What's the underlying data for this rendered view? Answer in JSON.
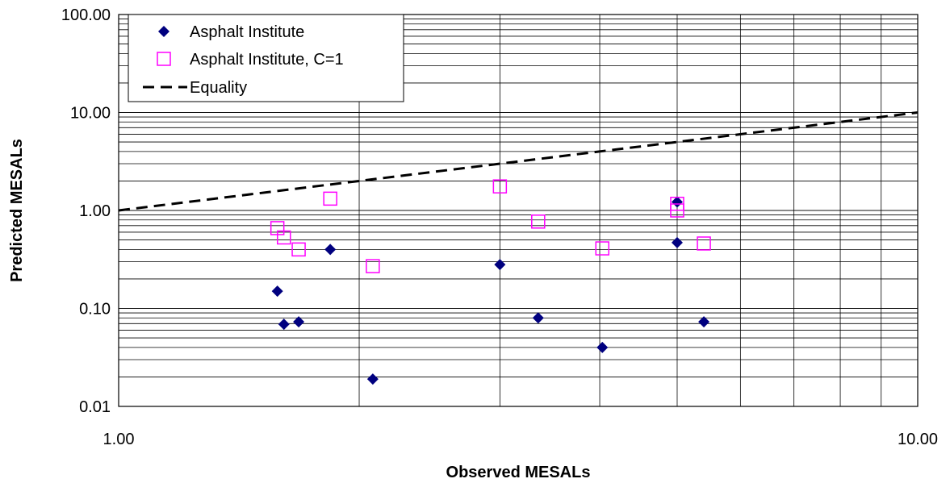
{
  "chart_data": {
    "type": "scatter",
    "xlabel": "Observed MESALs",
    "ylabel": "Predicted MESALs",
    "x_scale": "log",
    "y_scale": "log",
    "xlim": [
      1,
      10
    ],
    "ylim": [
      0.01,
      100
    ],
    "x_ticks": [
      "1.00",
      "10.00"
    ],
    "y_ticks": [
      "0.01",
      "0.10",
      "1.00",
      "10.00",
      "100.00"
    ],
    "grid": true,
    "legend_position": "top-left",
    "series": [
      {
        "name": "Asphalt Institute",
        "marker": "diamond",
        "color": "#00007f",
        "x": [
          1.58,
          1.61,
          1.68,
          1.84,
          2.08,
          3.0,
          3.35,
          4.03,
          5.0,
          5.0,
          5.4
        ],
        "y": [
          0.15,
          0.069,
          0.073,
          0.4,
          0.019,
          0.28,
          0.08,
          0.04,
          1.22,
          0.47,
          0.073
        ]
      },
      {
        "name": "Asphalt Institute, C=1",
        "marker": "open-square",
        "color": "#ff00ff",
        "x": [
          1.58,
          1.61,
          1.68,
          1.84,
          2.08,
          3.0,
          3.35,
          4.03,
          5.0,
          5.0,
          5.4
        ],
        "y": [
          0.66,
          0.53,
          0.4,
          1.32,
          0.27,
          1.76,
          0.77,
          0.41,
          1.17,
          1.0,
          0.46
        ]
      },
      {
        "name": "Equality",
        "line_style": "dashed",
        "color": "#000000",
        "x": [
          1,
          10
        ],
        "y": [
          1,
          10
        ]
      }
    ]
  }
}
